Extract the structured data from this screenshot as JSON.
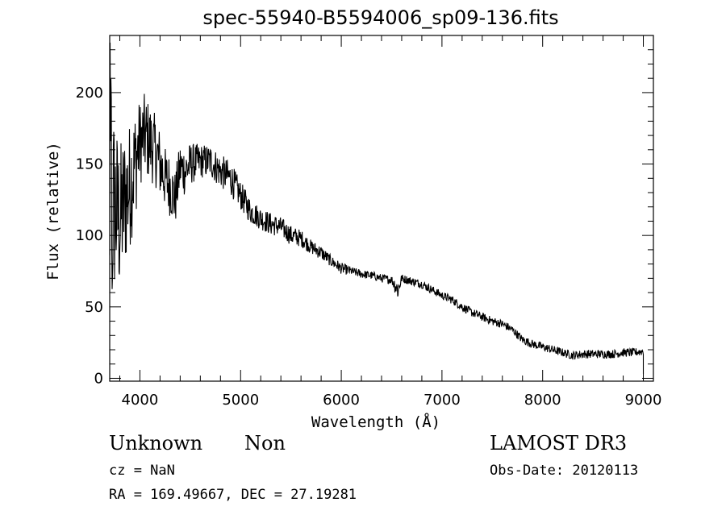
{
  "chart_data": {
    "type": "line",
    "title": "spec-55940-B5594006_sp09-136.fits",
    "xlabel": "Wavelength (Å)",
    "ylabel": "Flux (relative)",
    "xlim": [
      3700,
      9100
    ],
    "ylim": [
      -2,
      240
    ],
    "xticks": [
      4000,
      5000,
      6000,
      7000,
      8000,
      9000
    ],
    "yticks": [
      0,
      50,
      100,
      150,
      200
    ],
    "grid": false,
    "series": [
      {
        "name": "flux",
        "x": [
          3700,
          3750,
          3800,
          3850,
          3900,
          3950,
          4000,
          4050,
          4100,
          4150,
          4200,
          4250,
          4300,
          4350,
          4400,
          4450,
          4500,
          4600,
          4700,
          4800,
          4900,
          5000,
          5100,
          5200,
          5300,
          5400,
          5500,
          5600,
          5700,
          5800,
          5900,
          6000,
          6100,
          6200,
          6300,
          6400,
          6500,
          6563,
          6600,
          6700,
          6800,
          6900,
          7000,
          7100,
          7200,
          7300,
          7400,
          7500,
          7600,
          7700,
          7800,
          7900,
          8000,
          8100,
          8200,
          8300,
          8400,
          8500,
          8600,
          8700,
          8800,
          8900,
          9000
        ],
        "values": [
          130,
          120,
          110,
          125,
          135,
          150,
          165,
          170,
          165,
          160,
          150,
          140,
          135,
          125,
          148,
          145,
          150,
          152,
          152,
          145,
          140,
          128,
          117,
          112,
          108,
          106,
          100,
          98,
          92,
          88,
          82,
          77,
          75,
          73,
          72,
          70,
          69,
          62,
          70,
          68,
          66,
          62,
          58,
          55,
          50,
          46,
          43,
          40,
          38,
          34,
          27,
          24,
          22,
          20,
          18,
          16,
          17,
          17,
          17,
          17,
          18,
          18,
          19
        ],
        "noise": [
          80,
          65,
          55,
          50,
          45,
          40,
          30,
          30,
          28,
          25,
          25,
          22,
          22,
          20,
          18,
          18,
          15,
          12,
          12,
          12,
          12,
          10,
          9,
          8,
          8,
          7,
          7,
          6,
          5,
          5,
          4,
          4,
          3,
          3,
          3,
          3,
          3,
          8,
          3,
          3,
          3,
          3,
          3,
          3,
          3,
          3,
          3,
          3,
          3,
          3,
          3,
          3,
          3,
          3,
          3,
          3,
          3,
          3,
          3,
          3,
          3,
          3,
          3
        ]
      }
    ]
  },
  "info": {
    "class_label": "Unknown",
    "subclass_label": "Non",
    "survey": "LAMOST DR3",
    "cz": "cz = NaN",
    "obs_date": "Obs-Date: 20120113",
    "coords": "RA = 169.49667, DEC =  27.19281"
  }
}
